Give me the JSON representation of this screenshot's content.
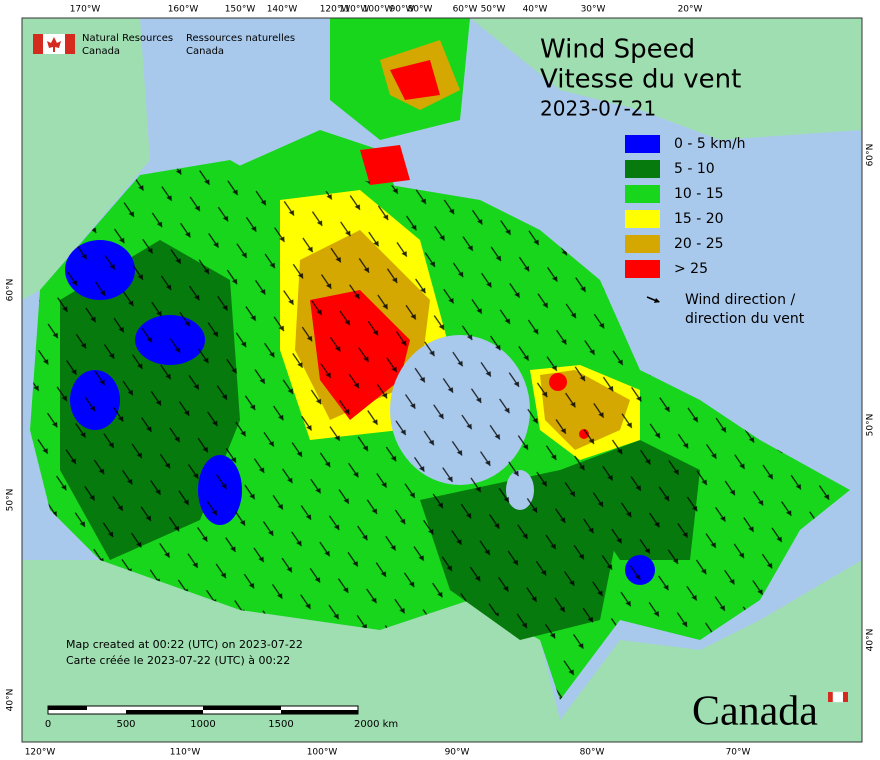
{
  "header": {
    "agency_en": [
      "Natural Resources",
      "Canada"
    ],
    "agency_fr": [
      "Ressources naturelles",
      "Canada"
    ]
  },
  "title": {
    "en": "Wind Speed",
    "fr": "Vitesse du vent",
    "date": "2023-07-21"
  },
  "legend": {
    "items": [
      {
        "label": "0 - 5 km/h",
        "color": "#0000ff"
      },
      {
        "label": "5 - 10",
        "color": "#067a0c"
      },
      {
        "label": "10 - 15",
        "color": "#18d61c"
      },
      {
        "label": "15 - 20",
        "color": "#ffff00"
      },
      {
        "label": "20 - 25",
        "color": "#d4a800"
      },
      {
        "label": "> 25",
        "color": "#ff0000"
      }
    ],
    "arrow": [
      "Wind direction /",
      "direction du vent"
    ]
  },
  "credits": [
    "Map created at 00:22 (UTC) on 2023-07-22",
    "Carte créée le 2023-07-22 (UTC) à 00:22"
  ],
  "scale": {
    "labels": [
      "0",
      "500",
      "1000",
      "1500",
      "2000  km"
    ]
  },
  "axes": {
    "top": [
      "170°W",
      "160°W",
      "150°W",
      "140°W",
      "120°W",
      "110°W",
      "100°W",
      "90°W",
      "80°W",
      "60°W",
      "50°W",
      "40°W",
      "30°W",
      "20°W"
    ],
    "bottom": [
      "120°W",
      "110°W",
      "100°W",
      "90°W",
      "80°W",
      "70°W"
    ],
    "left": [
      "60°N",
      "50°N",
      "40°N"
    ],
    "right": [
      "60°N",
      "50°N",
      "40°N"
    ]
  },
  "wordmark": "Canada"
}
